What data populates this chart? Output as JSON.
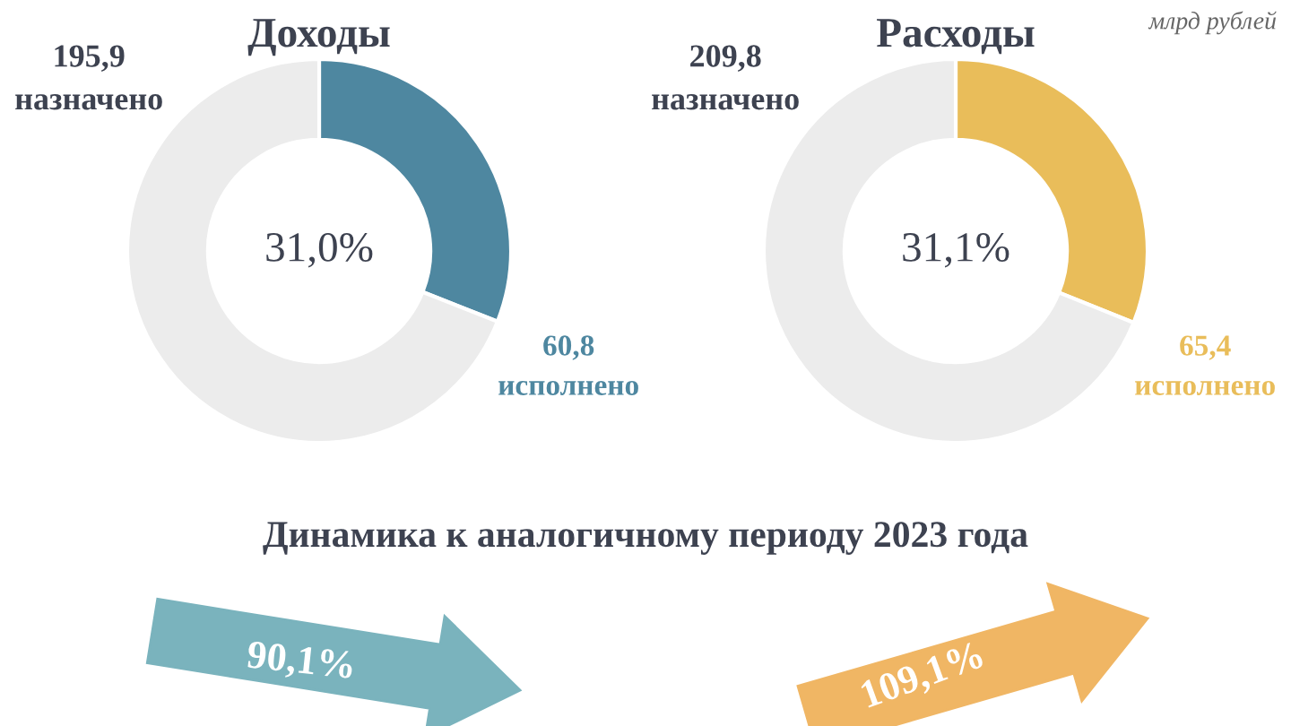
{
  "chart_data": [
    {
      "type": "donut",
      "title": "Доходы",
      "categories": [
        null,
        null
      ],
      "values": [
        31.0,
        69.0
      ],
      "colors": [
        "#4e87a0",
        "#ececec"
      ],
      "annotations": [
        "195,9\nназначено",
        "60,8\nисполнено",
        "31,0%"
      ]
    },
    {
      "type": "donut",
      "title": "Расходы",
      "categories": [
        null,
        null
      ],
      "values": [
        31.1,
        68.9
      ],
      "colors": [
        "#e9bd5a",
        "#ececec"
      ],
      "annotations": [
        "209,8\nназначено",
        "65,4\nисполнено",
        "31,1%",
        "млрд рублей"
      ]
    },
    {
      "type": "other",
      "title": "Динамика к аналогичному периоду 2023 года",
      "colors": [
        "#7ab3bd",
        "#f0b664"
      ],
      "annotations": [
        "90,1%",
        "109,1%"
      ]
    }
  ]
}
